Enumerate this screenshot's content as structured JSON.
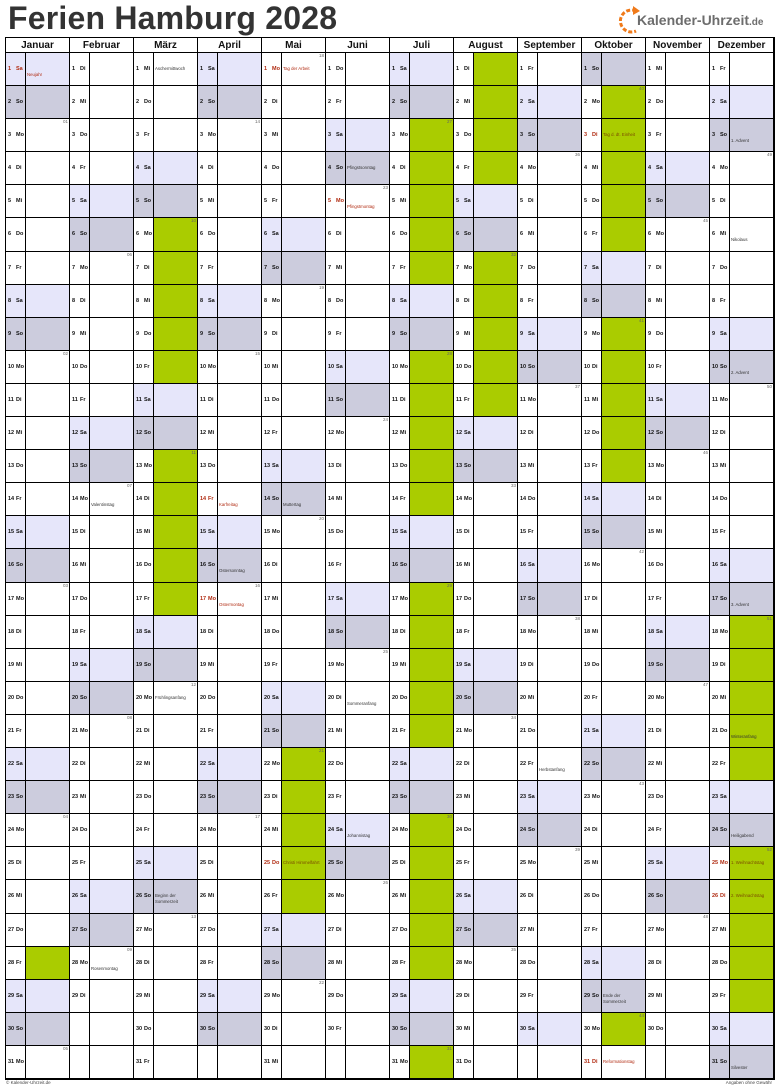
{
  "title": "Ferien Hamburg 2028",
  "logo": {
    "name": "Kalender-Uhrzeit",
    "tld": ".de",
    "icon": "clock-arrow-icon",
    "color": "#f07a1a"
  },
  "colors": {
    "saturday": "#e6e6fa",
    "sunday": "#ccccdd",
    "ferien": "#aacc00",
    "holiday_text": "#b02a10"
  },
  "weekday_abbr": [
    "Mo",
    "Di",
    "Mi",
    "Do",
    "Fr",
    "Sa",
    "So"
  ],
  "months": [
    {
      "name": "Januar",
      "first_weekday": "Sa",
      "length": 31,
      "kw": {
        "3": "01",
        "10": "02",
        "17": "03",
        "24": "04",
        "31": "05"
      },
      "ferien": [
        [
          28,
          28
        ]
      ],
      "labels": {
        "1": {
          "text": "Neujahr",
          "red": true
        }
      }
    },
    {
      "name": "Februar",
      "first_weekday": "Di",
      "length": 29,
      "kw": {
        "7": "06",
        "14": "07",
        "21": "08",
        "28": "09"
      },
      "ferien": [],
      "labels": {
        "14": {
          "text": "Valentinstag"
        },
        "28": {
          "text": "Rosenmontag"
        }
      }
    },
    {
      "name": "März",
      "first_weekday": "Mi",
      "length": 31,
      "kw": {
        "6": "10",
        "13": "11",
        "20": "12",
        "27": "13"
      },
      "ferien": [
        [
          6,
          17
        ]
      ],
      "labels": {
        "1": {
          "text": "Aschermittwoch"
        },
        "20": {
          "text": "Frühlingsanfang"
        },
        "26": {
          "text": "Beginn der Sommerzeit"
        }
      }
    },
    {
      "name": "April",
      "first_weekday": "Sa",
      "length": 30,
      "kw": {
        "3": "14",
        "10": "15",
        "17": "16",
        "24": "17"
      },
      "ferien": [],
      "labels": {
        "14": {
          "text": "Karfreitag",
          "red": true
        },
        "16": {
          "text": "Ostersonntag"
        },
        "17": {
          "text": "Ostermontag",
          "red": true
        }
      }
    },
    {
      "name": "Mai",
      "first_weekday": "Mo",
      "length": 31,
      "kw": {
        "1": "18",
        "8": "19",
        "15": "20",
        "22": "21",
        "29": "22"
      },
      "ferien": [
        [
          22,
          26
        ]
      ],
      "labels": {
        "1": {
          "text": "Tag der Arbeit",
          "red": true
        },
        "14": {
          "text": "Muttertag"
        },
        "25": {
          "text": "Christi Himmelfahrt",
          "red": true
        }
      }
    },
    {
      "name": "Juni",
      "first_weekday": "Do",
      "length": 30,
      "kw": {
        "5": "23",
        "12": "24",
        "19": "25",
        "26": "26"
      },
      "ferien": [],
      "labels": {
        "4": {
          "text": "Pfingstsonntag"
        },
        "5": {
          "text": "Pfingstmontag",
          "red": true
        },
        "20": {
          "text": "Sommeranfang"
        },
        "24": {
          "text": "Johannistag"
        }
      }
    },
    {
      "name": "Juli",
      "first_weekday": "Sa",
      "length": 31,
      "kw": {
        "3": "27",
        "10": "28",
        "17": "29",
        "24": "30",
        "31": "31"
      },
      "ferien": [
        [
          3,
          31
        ]
      ],
      "labels": {}
    },
    {
      "name": "August",
      "first_weekday": "Di",
      "length": 31,
      "kw": {
        "7": "32",
        "14": "33",
        "21": "34",
        "28": "35"
      },
      "ferien": [
        [
          1,
          11
        ]
      ],
      "labels": {}
    },
    {
      "name": "September",
      "first_weekday": "Fr",
      "length": 30,
      "kw": {
        "4": "36",
        "11": "37",
        "18": "38",
        "25": "39"
      },
      "ferien": [],
      "labels": {
        "22": {
          "text": "Herbstanfang"
        }
      }
    },
    {
      "name": "Oktober",
      "first_weekday": "So",
      "length": 31,
      "kw": {
        "2": "40",
        "9": "41",
        "16": "42",
        "23": "43",
        "30": "44"
      },
      "ferien": [
        [
          2,
          13
        ],
        [
          30,
          30
        ]
      ],
      "labels": {
        "3": {
          "text": "Tag d. dt. Einheit",
          "red": true
        },
        "29": {
          "text": "Ende der Sommerzeit"
        },
        "31": {
          "text": "Reformationstag",
          "red": true
        }
      }
    },
    {
      "name": "November",
      "first_weekday": "Mi",
      "length": 30,
      "kw": {
        "6": "45",
        "13": "46",
        "20": "47",
        "27": "48"
      },
      "ferien": [],
      "labels": {}
    },
    {
      "name": "Dezember",
      "first_weekday": "Fr",
      "length": 31,
      "kw": {
        "4": "49",
        "11": "50",
        "18": "51",
        "25": "52"
      },
      "ferien": [
        [
          18,
          29
        ]
      ],
      "labels": {
        "3": {
          "text": "1. Advent"
        },
        "6": {
          "text": "Nikolaus"
        },
        "10": {
          "text": "2. Advent"
        },
        "17": {
          "text": "3. Advent"
        },
        "21": {
          "text": "Winteranfang"
        },
        "24": {
          "text": "Heiligabend"
        },
        "25": {
          "text": "1. Weihnachtstag",
          "red": true
        },
        "26": {
          "text": "2. Weihnachtstag",
          "red": true
        },
        "31": {
          "text": "Silvester"
        }
      }
    }
  ],
  "footer": {
    "left": "© Kalender-Uhrzeit.de",
    "right": "Angaben ohne Gewähr"
  }
}
